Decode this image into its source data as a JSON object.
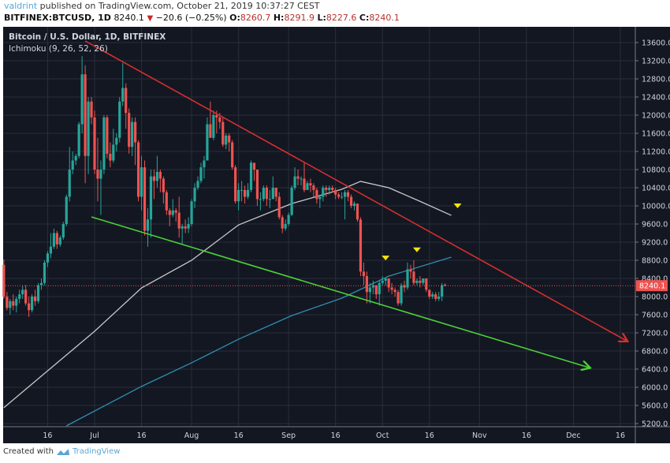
{
  "header": {
    "user": "valdrint",
    "published": "published on TradingView.com, October 21, 2019 10:37:27 CEST",
    "symbol": "BITFINEX:BTCUSD, 1D",
    "last": "8240.1",
    "change": "−20.6 (−0.25%)",
    "o_label": "O:",
    "o": "8260.7",
    "h_label": "H:",
    "h": "8291.9",
    "l_label": "L:",
    "l": "8227.6",
    "c_label": "C:",
    "c": "8240.1"
  },
  "legend": {
    "title": "Bitcoin / U.S. Dollar, 1D, BITFINEX",
    "indicator": "Ichimoku (9, 26, 52, 26)"
  },
  "footer": {
    "created_with": "Created with",
    "brand": "TradingView"
  },
  "colors": {
    "up": "#26a69a",
    "down": "#ef5350",
    "background": "#131722",
    "grid": "#2a2e39",
    "resistance": "#d32f2f",
    "support": "#4cd137",
    "ma_light": "#c8c8c8",
    "ma_blue": "#2e8fb0",
    "marker": "#f5e60a",
    "price_tag": "#ef5350"
  },
  "chart_data": {
    "type": "candlestick",
    "title": "Bitcoin / U.S. Dollar, 1D, BITFINEX",
    "x_ticks": [
      {
        "date": "2019-06-16",
        "label": "16"
      },
      {
        "date": "2019-07-01",
        "label": "Jul"
      },
      {
        "date": "2019-07-16",
        "label": "16"
      },
      {
        "date": "2019-08-01",
        "label": "Aug"
      },
      {
        "date": "2019-08-16",
        "label": "16"
      },
      {
        "date": "2019-09-01",
        "label": "Sep"
      },
      {
        "date": "2019-09-16",
        "label": "16"
      },
      {
        "date": "2019-10-01",
        "label": "Oct"
      },
      {
        "date": "2019-10-16",
        "label": "16"
      },
      {
        "date": "2019-11-01",
        "label": "Nov"
      },
      {
        "date": "2019-11-16",
        "label": "16"
      },
      {
        "date": "2019-12-01",
        "label": "Dec"
      },
      {
        "date": "2019-12-16",
        "label": "16"
      }
    ],
    "y_ticks": [
      "13600.0",
      "13200.0",
      "12800.0",
      "12400.0",
      "12000.0",
      "11600.0",
      "11200.0",
      "10800.0",
      "10400.0",
      "10000.0",
      "9600.0",
      "9200.0",
      "8800.0",
      "8400.0",
      "8000.0",
      "7600.0",
      "7200.0",
      "6800.0",
      "6400.0",
      "6000.0",
      "5600.0",
      "5200.0"
    ],
    "ylim": [
      5200,
      13600
    ],
    "grid": true,
    "last_price": "8240.1",
    "candles": [
      [
        "2019-06-02",
        8700,
        8820,
        7950,
        8000
      ],
      [
        "2019-06-03",
        8000,
        8100,
        7700,
        7750
      ],
      [
        "2019-06-04",
        7750,
        7950,
        7600,
        7900
      ],
      [
        "2019-06-05",
        7900,
        8050,
        7700,
        7800
      ],
      [
        "2019-06-06",
        7800,
        8000,
        7650,
        7950
      ],
      [
        "2019-06-07",
        7950,
        8150,
        7850,
        8050
      ],
      [
        "2019-06-08",
        8050,
        8250,
        7950,
        8150
      ],
      [
        "2019-06-09",
        8150,
        8250,
        7800,
        7850
      ],
      [
        "2019-06-10",
        7850,
        8000,
        7550,
        7700
      ],
      [
        "2019-06-11",
        7700,
        8050,
        7650,
        8000
      ],
      [
        "2019-06-12",
        8000,
        8150,
        7800,
        7900
      ],
      [
        "2019-06-13",
        7900,
        8300,
        7850,
        8250
      ],
      [
        "2019-06-14",
        8250,
        8400,
        8150,
        8300
      ],
      [
        "2019-06-15",
        8300,
        8800,
        8250,
        8750
      ],
      [
        "2019-06-16",
        8750,
        9000,
        8650,
        8950
      ],
      [
        "2019-06-17",
        8950,
        9400,
        8850,
        9100
      ],
      [
        "2019-06-18",
        9100,
        9500,
        9050,
        9400
      ],
      [
        "2019-06-19",
        9400,
        9450,
        9050,
        9150
      ],
      [
        "2019-06-20",
        9150,
        9350,
        9100,
        9300
      ],
      [
        "2019-06-21",
        9300,
        9650,
        9250,
        9600
      ],
      [
        "2019-06-22",
        9600,
        10250,
        9550,
        10200
      ],
      [
        "2019-06-23",
        10200,
        11300,
        10100,
        10800
      ],
      [
        "2019-06-24",
        10800,
        11200,
        10700,
        11000
      ],
      [
        "2019-06-25",
        11000,
        11150,
        10900,
        11100
      ],
      [
        "2019-06-26",
        11100,
        11850,
        11050,
        11800
      ],
      [
        "2019-06-27",
        11800,
        13300,
        11600,
        12900
      ],
      [
        "2019-06-28",
        12900,
        13100,
        10500,
        11100
      ],
      [
        "2019-06-29",
        11100,
        12400,
        10700,
        12300
      ],
      [
        "2019-06-30",
        12300,
        12400,
        11800,
        11950
      ],
      [
        "2019-07-01",
        11950,
        12100,
        10700,
        10800
      ],
      [
        "2019-07-02",
        10800,
        11500,
        10100,
        10600
      ],
      [
        "2019-07-03",
        10600,
        11000,
        9800,
        10800
      ],
      [
        "2019-07-04",
        10800,
        12000,
        10700,
        11950
      ],
      [
        "2019-07-05",
        11950,
        12000,
        11050,
        11150
      ],
      [
        "2019-07-06",
        11150,
        11400,
        10850,
        11000
      ],
      [
        "2019-07-07",
        11000,
        11700,
        10950,
        11350
      ],
      [
        "2019-07-08",
        11350,
        11600,
        11200,
        11500
      ],
      [
        "2019-07-09",
        11500,
        12400,
        11400,
        12300
      ],
      [
        "2019-07-10",
        12300,
        13150,
        12200,
        12600
      ],
      [
        "2019-07-11",
        12600,
        12700,
        11700,
        12050
      ],
      [
        "2019-07-12",
        12050,
        12150,
        11150,
        11300
      ],
      [
        "2019-07-13",
        11300,
        11950,
        11100,
        11850
      ],
      [
        "2019-07-14",
        11850,
        11950,
        10900,
        11400
      ],
      [
        "2019-07-15",
        11400,
        11450,
        10100,
        10200
      ],
      [
        "2019-07-16",
        10200,
        11100,
        9900,
        10850
      ],
      [
        "2019-07-17",
        10850,
        11000,
        9350,
        9450
      ],
      [
        "2019-07-18",
        9450,
        9950,
        9100,
        9700
      ],
      [
        "2019-07-19",
        9700,
        10800,
        9300,
        10650
      ],
      [
        "2019-07-20",
        10650,
        10800,
        10150,
        10550
      ],
      [
        "2019-07-21",
        10550,
        11100,
        10400,
        10750
      ],
      [
        "2019-07-22",
        10750,
        10800,
        10300,
        10600
      ],
      [
        "2019-07-23",
        10600,
        10650,
        10050,
        10300
      ],
      [
        "2019-07-24",
        10300,
        10350,
        9800,
        9900
      ],
      [
        "2019-07-25",
        9900,
        9950,
        9550,
        9800
      ],
      [
        "2019-07-26",
        9800,
        10150,
        9750,
        9900
      ],
      [
        "2019-07-27",
        9900,
        9950,
        9650,
        9850
      ],
      [
        "2019-07-28",
        9850,
        10200,
        9300,
        9500
      ],
      [
        "2019-07-29",
        9500,
        9600,
        9150,
        9550
      ],
      [
        "2019-07-30",
        9550,
        9700,
        9400,
        9500
      ],
      [
        "2019-07-31",
        9500,
        9750,
        9400,
        9600
      ],
      [
        "2019-08-01",
        9600,
        10150,
        9550,
        10100
      ],
      [
        "2019-08-02",
        10100,
        10500,
        9950,
        10400
      ],
      [
        "2019-08-03",
        10400,
        10650,
        10350,
        10550
      ],
      [
        "2019-08-04",
        10550,
        10950,
        10500,
        10850
      ],
      [
        "2019-08-05",
        10850,
        11100,
        10600,
        11000
      ],
      [
        "2019-08-06",
        11000,
        11950,
        11000,
        11800
      ],
      [
        "2019-08-07",
        11800,
        12300,
        11500,
        11500
      ],
      [
        "2019-08-08",
        11500,
        12100,
        11450,
        12000
      ],
      [
        "2019-08-09",
        12000,
        12100,
        11600,
        11950
      ],
      [
        "2019-08-10",
        11950,
        12050,
        11700,
        11850
      ],
      [
        "2019-08-11",
        11850,
        11950,
        11300,
        11350
      ],
      [
        "2019-08-12",
        11350,
        11600,
        11250,
        11550
      ],
      [
        "2019-08-13",
        11550,
        11600,
        11200,
        11400
      ],
      [
        "2019-08-14",
        11400,
        11450,
        10800,
        10850
      ],
      [
        "2019-08-15",
        10850,
        10900,
        10050,
        10100
      ],
      [
        "2019-08-16",
        10100,
        10500,
        9900,
        10350
      ],
      [
        "2019-08-17",
        10350,
        10550,
        10100,
        10350
      ],
      [
        "2019-08-18",
        10350,
        10450,
        10050,
        10200
      ],
      [
        "2019-08-19",
        10200,
        10500,
        10150,
        10350
      ],
      [
        "2019-08-20",
        10350,
        11000,
        10300,
        10950
      ],
      [
        "2019-08-21",
        10950,
        10950,
        10550,
        10800
      ],
      [
        "2019-08-22",
        10800,
        10800,
        10000,
        10150
      ],
      [
        "2019-08-23",
        10150,
        10300,
        9900,
        10150
      ],
      [
        "2019-08-24",
        10150,
        10450,
        10100,
        10400
      ],
      [
        "2019-08-25",
        10400,
        10450,
        10000,
        10150
      ],
      [
        "2019-08-26",
        10150,
        10350,
        9950,
        10150
      ],
      [
        "2019-08-27",
        10150,
        10650,
        10150,
        10400
      ],
      [
        "2019-08-28",
        10400,
        10400,
        10100,
        10200
      ],
      [
        "2019-08-29",
        10200,
        10300,
        9700,
        9750
      ],
      [
        "2019-08-30",
        9750,
        9800,
        9400,
        9500
      ],
      [
        "2019-08-31",
        9500,
        9700,
        9450,
        9600
      ],
      [
        "2019-09-01",
        9600,
        9850,
        9550,
        9800
      ],
      [
        "2019-09-02",
        9800,
        10450,
        9780,
        10400
      ],
      [
        "2019-09-03",
        10400,
        10850,
        10350,
        10650
      ],
      [
        "2019-09-04",
        10650,
        10800,
        10450,
        10600
      ],
      [
        "2019-09-05",
        10600,
        10650,
        10450,
        10600
      ],
      [
        "2019-09-06",
        10600,
        10950,
        10300,
        10350
      ],
      [
        "2019-09-07",
        10350,
        10550,
        10350,
        10500
      ],
      [
        "2019-09-08",
        10500,
        10600,
        10300,
        10450
      ],
      [
        "2019-09-09",
        10450,
        10500,
        10200,
        10350
      ],
      [
        "2019-09-10",
        10350,
        10400,
        10050,
        10150
      ],
      [
        "2019-09-11",
        10150,
        10250,
        9950,
        10200
      ],
      [
        "2019-09-12",
        10200,
        10450,
        10100,
        10400
      ],
      [
        "2019-09-13",
        10400,
        10450,
        10200,
        10350
      ],
      [
        "2019-09-14",
        10350,
        10450,
        10250,
        10400
      ],
      [
        "2019-09-15",
        10400,
        10450,
        10300,
        10350
      ],
      [
        "2019-09-16",
        10350,
        10400,
        10150,
        10250
      ],
      [
        "2019-09-17",
        10250,
        10300,
        10150,
        10200
      ],
      [
        "2019-09-18",
        10200,
        10300,
        10150,
        10200
      ],
      [
        "2019-09-19",
        10200,
        10350,
        9700,
        10300
      ],
      [
        "2019-09-20",
        10300,
        10350,
        10100,
        10200
      ],
      [
        "2019-09-21",
        10200,
        10250,
        9950,
        10000
      ],
      [
        "2019-09-22",
        10000,
        10100,
        9900,
        10050
      ],
      [
        "2019-09-23",
        10050,
        10050,
        9650,
        9700
      ],
      [
        "2019-09-24",
        9700,
        9750,
        8450,
        8550
      ],
      [
        "2019-09-25",
        8550,
        8750,
        8250,
        8450
      ],
      [
        "2019-09-26",
        8450,
        8550,
        7850,
        8100
      ],
      [
        "2019-09-27",
        8100,
        8300,
        7850,
        8200
      ],
      [
        "2019-09-28",
        8200,
        8350,
        8050,
        8250
      ],
      [
        "2019-09-29",
        8250,
        8250,
        7950,
        8050
      ],
      [
        "2019-09-30",
        8050,
        8350,
        7800,
        8300
      ],
      [
        "2019-10-01",
        8300,
        8450,
        8250,
        8350
      ],
      [
        "2019-10-02",
        8350,
        8400,
        8250,
        8400
      ],
      [
        "2019-10-03",
        8400,
        8400,
        8100,
        8200
      ],
      [
        "2019-10-04",
        8200,
        8300,
        8050,
        8150
      ],
      [
        "2019-10-05",
        8150,
        8200,
        8000,
        8100
      ],
      [
        "2019-10-06",
        8100,
        8150,
        7800,
        7850
      ],
      [
        "2019-10-07",
        7850,
        8300,
        7800,
        8250
      ],
      [
        "2019-10-08",
        8250,
        8350,
        8100,
        8200
      ],
      [
        "2019-10-09",
        8200,
        8750,
        8150,
        8600
      ],
      [
        "2019-10-10",
        8600,
        8700,
        8400,
        8550
      ],
      [
        "2019-10-11",
        8550,
        8800,
        8250,
        8300
      ],
      [
        "2019-10-12",
        8300,
        8400,
        8250,
        8350
      ],
      [
        "2019-10-13",
        8350,
        8450,
        8200,
        8300
      ],
      [
        "2019-10-14",
        8300,
        8400,
        8250,
        8400
      ],
      [
        "2019-10-15",
        8400,
        8400,
        8100,
        8150
      ],
      [
        "2019-10-16",
        8150,
        8150,
        7950,
        8000
      ],
      [
        "2019-10-17",
        8000,
        8100,
        7950,
        8050
      ],
      [
        "2019-10-18",
        8050,
        8100,
        7900,
        7950
      ],
      [
        "2019-10-19",
        7950,
        8100,
        7900,
        8000
      ],
      [
        "2019-10-20",
        8000,
        8300,
        7900,
        8250
      ],
      [
        "2019-10-21",
        8260.7,
        8291.9,
        8227.6,
        8240.1
      ]
    ],
    "moving_average_light": [
      [
        "2019-06-02",
        5550
      ],
      [
        "2019-07-01",
        7235
      ],
      [
        "2019-07-16",
        8190
      ],
      [
        "2019-08-01",
        8800
      ],
      [
        "2019-08-16",
        9580
      ],
      [
        "2019-09-02",
        10050
      ],
      [
        "2019-09-18",
        10365
      ],
      [
        "2019-09-24",
        10540
      ],
      [
        "2019-10-03",
        10400
      ],
      [
        "2019-10-13",
        10100
      ],
      [
        "2019-10-23",
        9790
      ]
    ],
    "moving_average_blue": [
      [
        "2019-06-22",
        5150
      ],
      [
        "2019-07-16",
        6020
      ],
      [
        "2019-08-01",
        6540
      ],
      [
        "2019-08-16",
        7060
      ],
      [
        "2019-09-02",
        7580
      ],
      [
        "2019-09-18",
        7965
      ],
      [
        "2019-10-03",
        8450
      ],
      [
        "2019-10-23",
        8870
      ]
    ],
    "trendlines": [
      {
        "role": "resistance",
        "from": [
          "2019-06-28",
          13635
        ],
        "to": [
          "2019-12-18",
          7026
        ]
      },
      {
        "role": "support",
        "from": [
          "2019-06-30",
          9756
        ],
        "to": [
          "2019-12-06",
          6435
        ]
      }
    ],
    "markers": [
      [
        "2019-10-02",
        8850
      ],
      [
        "2019-10-12",
        9030
      ],
      [
        "2019-10-25",
        10000
      ]
    ]
  }
}
